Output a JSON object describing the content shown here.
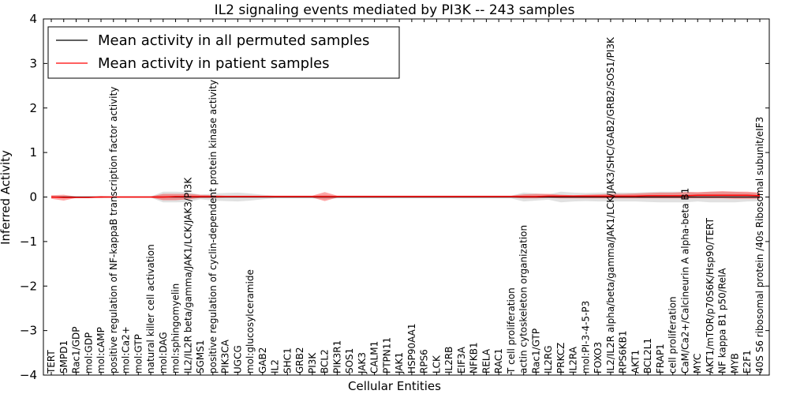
{
  "chart_data": {
    "type": "line",
    "title": "IL2 signaling events mediated by PI3K -- 243 samples",
    "xlabel": "Cellular Entities",
    "ylabel": "Inferred Activity",
    "ylim": [
      -4,
      4
    ],
    "yticks": [
      "4",
      "3",
      "2",
      "1",
      "0",
      "−1",
      "−2",
      "−3",
      "−4"
    ],
    "ytick_values": [
      4,
      3,
      2,
      1,
      0,
      -1,
      -2,
      -3,
      -4
    ],
    "grid": false,
    "legend_position": "top-left",
    "categories": [
      "TERT",
      "SMPD1",
      "Rac1/GDP",
      "mol:GDP",
      "mol:cAMP",
      "positive regulation of NF-kappaB transcription factor activity",
      "mol:Ca2+",
      "mol:GTP",
      "natural killer cell activation",
      "mol:DAG",
      "mol:sphingomyelin",
      "IL2/IL2R beta/gamma/JAK1/LCK/JAK3/PI3K",
      "SGMS1",
      "positive regulation of cyclin-dependent protein kinase activity",
      "PIK3CA",
      "UGCG",
      "mol:glucosylceramide",
      "GAB2",
      "IL2",
      "SHC1",
      "GRB2",
      "PI3K",
      "BCL2",
      "PIK3R1",
      "SOS1",
      "JAK3",
      "CALM1",
      "PTPN11",
      "JAK1",
      "HSP90AA1",
      "RPS6",
      "LCK",
      "IL2RB",
      "EIF3A",
      "NFKB1",
      "RELA",
      "RAC1",
      "T cell proliferation",
      "actin cytoskeleton organization",
      "Rac1/GTP",
      "IL2RG",
      "PRKCZ",
      "IL2RA",
      "mol:PI-3-4-5-P3",
      "FOXO3",
      "IL2/IL2R alpha/beta/gamma/JAK1/LCK/JAK3/SHC/GAB2/GRB2/SOS1/PI3K",
      "RPS6KB1",
      "AKT1",
      "BCL2L1",
      "FRAP1",
      "cell proliferation",
      "CaM/Ca2+/Calcineurin A alpha-beta B1",
      "MYC",
      "AKT1/mTOR/p70S6K/Hsp90/TERT",
      "NF kappa B1 p50/RelA",
      "MYB",
      "E2F1",
      "40S S6 ribosomal protein /40s Ribosomal subunit/eIF3"
    ],
    "series": [
      {
        "name": "Mean activity in all permuted samples",
        "color": "#000000",
        "values": [
          0,
          0,
          0,
          0,
          0,
          0,
          0,
          0,
          0,
          0,
          0,
          0,
          0,
          0,
          0,
          0,
          0,
          0,
          0,
          0,
          0,
          0,
          0,
          0,
          0,
          0,
          0,
          0,
          0,
          0,
          0,
          0,
          0,
          0,
          0,
          0,
          0,
          0,
          0,
          0,
          0,
          0,
          0,
          0,
          0,
          0,
          0,
          0,
          0,
          0,
          0,
          0,
          0,
          0,
          0,
          0,
          0,
          0
        ],
        "spread": [
          0.02,
          0.02,
          0.01,
          0.01,
          0.02,
          0.01,
          0.01,
          0.01,
          0.01,
          0.12,
          0.12,
          0.11,
          0.05,
          0.08,
          0.09,
          0.1,
          0.08,
          0.05,
          0.03,
          0.03,
          0.03,
          0.03,
          0.05,
          0.03,
          0.03,
          0.03,
          0.03,
          0.03,
          0.03,
          0.03,
          0.03,
          0.03,
          0.03,
          0.03,
          0.03,
          0.03,
          0.03,
          0.03,
          0.1,
          0.08,
          0.06,
          0.12,
          0.1,
          0.09,
          0.1,
          0.1,
          0.1,
          0.1,
          0.11,
          0.12,
          0.12,
          0.12,
          0.1,
          0.12,
          0.12,
          0.12,
          0.1,
          0.09
        ]
      },
      {
        "name": "Mean activity in patient samples",
        "color": "#ff0000",
        "values": [
          0,
          -0.01,
          -0.01,
          -0.01,
          0,
          0,
          0,
          0,
          0,
          0,
          0.01,
          0.01,
          0.01,
          0.01,
          0.01,
          0.01,
          0.01,
          0.01,
          0.01,
          0.01,
          0.01,
          0.01,
          0.01,
          0.01,
          0.01,
          0.01,
          0.01,
          0.01,
          0.01,
          0.01,
          0.01,
          0.01,
          0.01,
          0.01,
          0.01,
          0.01,
          0.01,
          0.01,
          0.01,
          0.01,
          0.02,
          0.02,
          0.02,
          0.02,
          0.02,
          0.02,
          0.02,
          0.02,
          0.03,
          0.03,
          0.03,
          0.03,
          0.04,
          0.04,
          0.04,
          0.04,
          0.04,
          0.03
        ],
        "upper": [
          0.04,
          0.05,
          0.01,
          0.01,
          0.02,
          0.01,
          0.01,
          0.01,
          0.01,
          0.07,
          0.07,
          0.07,
          0.05,
          0.04,
          0.03,
          0.03,
          0.03,
          0.03,
          0.03,
          0.03,
          0.03,
          0.03,
          0.11,
          0.03,
          0.03,
          0.03,
          0.03,
          0.03,
          0.03,
          0.03,
          0.03,
          0.03,
          0.03,
          0.03,
          0.03,
          0.03,
          0.03,
          0.03,
          0.06,
          0.07,
          0.07,
          0.05,
          0.04,
          0.05,
          0.06,
          0.07,
          0.07,
          0.08,
          0.09,
          0.1,
          0.1,
          0.11,
          0.11,
          0.12,
          0.13,
          0.12,
          0.12,
          0.1
        ],
        "lower": [
          -0.04,
          -0.08,
          -0.02,
          -0.02,
          -0.02,
          -0.01,
          -0.01,
          -0.01,
          -0.01,
          -0.07,
          -0.07,
          -0.05,
          -0.02,
          -0.02,
          -0.01,
          -0.01,
          -0.01,
          -0.01,
          -0.01,
          -0.01,
          -0.01,
          -0.01,
          -0.09,
          -0.01,
          -0.01,
          -0.01,
          -0.01,
          -0.01,
          -0.01,
          -0.01,
          -0.01,
          -0.01,
          -0.01,
          -0.01,
          -0.01,
          -0.01,
          -0.01,
          -0.01,
          -0.03,
          -0.03,
          -0.02,
          -0.03,
          -0.03,
          -0.03,
          -0.03,
          -0.03,
          -0.03,
          -0.03,
          -0.03,
          -0.03,
          -0.03,
          -0.03,
          -0.03,
          -0.03,
          -0.03,
          -0.04,
          -0.04,
          -0.04
        ]
      }
    ]
  }
}
